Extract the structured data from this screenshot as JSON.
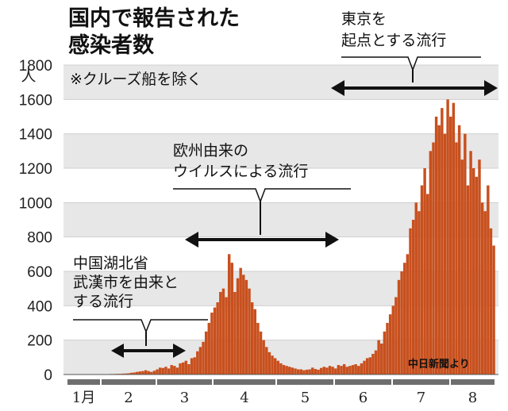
{
  "chart_data": {
    "type": "bar",
    "title_lines": [
      "国内で報告された",
      "感染者数"
    ],
    "note": "※クルーズ船を除く",
    "y_unit": "人",
    "ylim": [
      0,
      1800
    ],
    "y_ticks": [
      "1800",
      "1600",
      "1400",
      "1200",
      "1000",
      "800",
      "600",
      "400",
      "200",
      "0"
    ],
    "x_months": [
      "1月",
      "2",
      "3",
      "4",
      "5",
      "6",
      "7",
      "8"
    ],
    "source": "中日新聞より",
    "annotations": [
      {
        "name": "wuhan",
        "lines": [
          "中国湖北省",
          "武漢市を由来と",
          "する流行"
        ]
      },
      {
        "name": "europe",
        "lines": [
          "欧州由来の",
          "ウイルスによる流行"
        ]
      },
      {
        "name": "tokyo",
        "lines": [
          "東京を",
          "起点とする流行"
        ]
      }
    ],
    "daily_values": [
      0,
      0,
      0,
      0,
      0,
      1,
      0,
      0,
      2,
      0,
      1,
      1,
      2,
      1,
      2,
      3,
      3,
      4,
      4,
      5,
      6,
      7,
      10,
      12,
      15,
      18,
      20,
      25,
      20,
      15,
      22,
      30,
      40,
      38,
      45,
      35,
      55,
      50,
      40,
      65,
      70,
      80,
      60,
      95,
      100,
      135,
      160,
      190,
      250,
      300,
      360,
      390,
      420,
      480,
      500,
      450,
      700,
      650,
      480,
      560,
      620,
      580,
      550,
      500,
      420,
      380,
      300,
      250,
      200,
      160,
      130,
      110,
      95,
      80,
      65,
      55,
      50,
      45,
      40,
      35,
      30,
      30,
      25,
      28,
      30,
      40,
      32,
      28,
      38,
      45,
      40,
      50,
      45,
      35,
      55,
      50,
      60,
      45,
      50,
      55,
      60,
      50,
      65,
      80,
      95,
      100,
      120,
      140,
      200,
      180,
      250,
      300,
      350,
      400,
      450,
      550,
      600,
      650,
      700,
      850,
      900,
      1000,
      950,
      1100,
      1200,
      1050,
      1300,
      1350,
      1500,
      1450,
      1550,
      1400,
      1600,
      1500,
      1580,
      1350,
      1450,
      1250,
      1400,
      1100,
      1300,
      1200,
      1150,
      1250,
      1000,
      950,
      1100,
      850,
      750
    ]
  }
}
